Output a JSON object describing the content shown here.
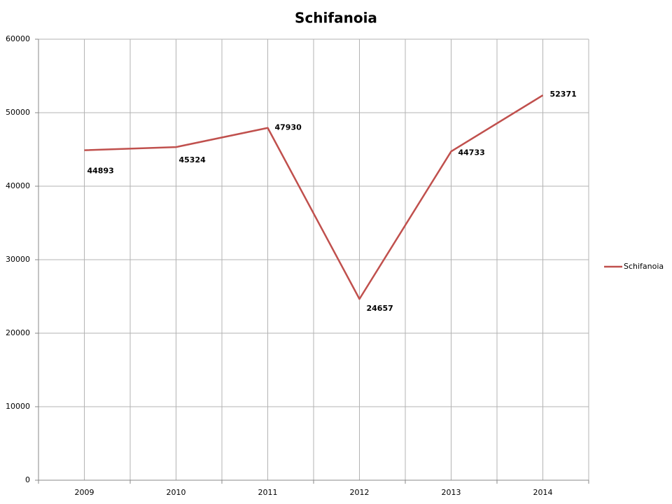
{
  "chart_data": {
    "type": "line",
    "title": "Schifanoia",
    "categories": [
      "2009",
      "2010",
      "2011",
      "2012",
      "2013",
      "2014"
    ],
    "series": [
      {
        "name": "Schifanoia",
        "color": "#c0504d",
        "values": [
          44893,
          45324,
          47930,
          24657,
          44733,
          52371
        ]
      }
    ],
    "ylim": [
      0,
      60000
    ],
    "yticks": [
      0,
      10000,
      20000,
      30000,
      40000,
      50000,
      60000
    ],
    "grid": true,
    "legend": "right"
  }
}
